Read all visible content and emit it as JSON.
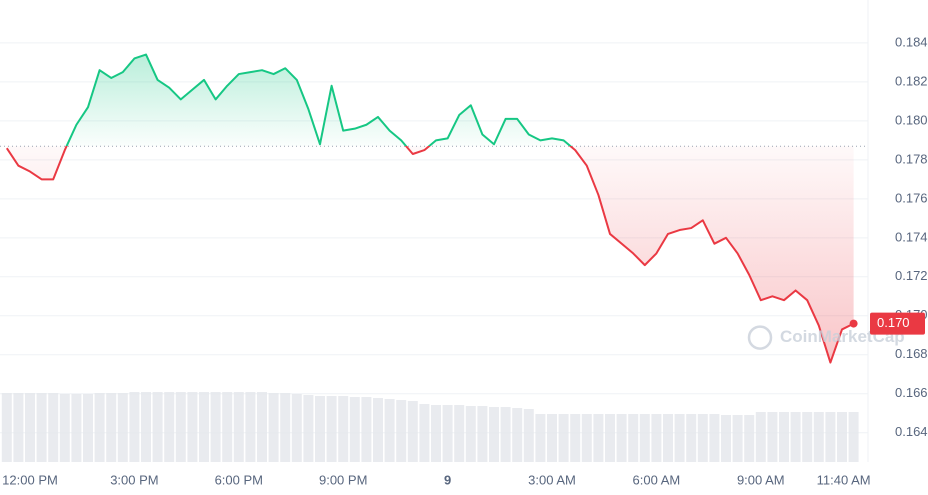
{
  "chart_data": {
    "type": "line",
    "categories": [
      null,
      null,
      "12:00 PM",
      null,
      null,
      null,
      null,
      null,
      null,
      null,
      null,
      "3:00 PM",
      null,
      null,
      null,
      null,
      null,
      null,
      null,
      null,
      "6:00 PM",
      null,
      null,
      null,
      null,
      null,
      null,
      null,
      null,
      "9:00 PM",
      null,
      null,
      null,
      null,
      null,
      null,
      null,
      null,
      "9",
      null,
      null,
      null,
      null,
      null,
      null,
      null,
      null,
      "3:00 AM",
      null,
      null,
      null,
      null,
      null,
      null,
      null,
      null,
      "6:00 AM",
      null,
      null,
      null,
      null,
      null,
      null,
      null,
      null,
      "9:00 AM",
      null,
      null,
      null,
      null,
      null,
      null,
      null,
      "11:40 AM"
    ],
    "values": [
      0.1786,
      0.1777,
      0.1774,
      0.177,
      0.177,
      0.1785,
      0.1798,
      0.1807,
      0.1826,
      0.1822,
      0.1825,
      0.1832,
      0.1834,
      0.1821,
      0.1817,
      0.1811,
      0.1816,
      0.1821,
      0.1811,
      0.1818,
      0.1824,
      0.1825,
      0.1826,
      0.1824,
      0.1827,
      0.1821,
      0.1806,
      0.1788,
      0.1818,
      0.1795,
      0.1796,
      0.1798,
      0.1802,
      0.1795,
      0.179,
      0.1783,
      0.1785,
      0.179,
      0.1791,
      0.1803,
      0.1808,
      0.1793,
      0.1788,
      0.1801,
      0.1801,
      0.1793,
      0.179,
      0.1791,
      0.179,
      0.1785,
      0.1777,
      0.1762,
      0.1742,
      0.1737,
      0.1732,
      0.1726,
      0.1732,
      0.1742,
      0.1744,
      0.1745,
      0.1749,
      0.1737,
      0.174,
      0.1732,
      0.1721,
      0.1708,
      0.171,
      0.1708,
      0.1713,
      0.1708,
      0.1695,
      0.1676,
      0.1693,
      0.1696
    ],
    "volume": [
      69,
      69,
      69,
      69,
      69,
      68,
      68,
      68,
      69,
      69,
      69,
      70,
      70,
      70,
      70,
      70,
      70,
      70,
      70,
      70,
      70,
      70,
      70,
      69,
      69,
      68,
      67,
      66,
      66,
      66,
      65,
      65,
      64,
      63,
      62,
      61,
      58,
      57,
      57,
      57,
      56,
      56,
      55,
      55,
      54,
      53,
      48,
      48,
      48,
      48,
      48,
      48,
      48,
      48,
      48,
      48,
      48,
      48,
      48,
      48,
      48,
      48,
      47,
      47,
      47,
      50,
      50,
      50,
      50,
      50,
      50,
      50,
      50,
      50
    ],
    "volume_lim": [
      0,
      100
    ],
    "baseline": 0.1787,
    "up_color": "#16c784",
    "down_color": "#ea3943",
    "last_price_label": "0.170",
    "watermark": "CoinMarketCap",
    "ylim": [
      0.1625,
      0.1862
    ],
    "yticks": [
      0.164,
      0.166,
      0.168,
      {
        "value": 0.17,
        "label": "0.170"
      },
      0.172,
      0.174,
      0.176,
      0.178,
      {
        "value": 0.18,
        "label": "0.180"
      },
      0.182,
      0.184
    ],
    "grid": true
  }
}
